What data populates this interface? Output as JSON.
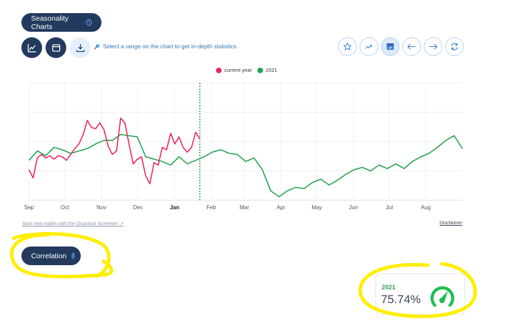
{
  "header": {
    "title": "Seasonality Charts",
    "info_icon": "info-icon",
    "hint_icon": "magnifier-icon",
    "hint_text": "Select a range on the chart to get in-depth statistics"
  },
  "view_buttons": [
    {
      "name": "line-chart-view",
      "icon": "line-chart-icon",
      "style": "dark"
    },
    {
      "name": "calendar-view",
      "icon": "calendar-icon",
      "style": "dark"
    },
    {
      "name": "download",
      "icon": "download-icon",
      "style": "light"
    }
  ],
  "toolbar": [
    {
      "name": "favorite",
      "icon": "star-icon"
    },
    {
      "name": "trend",
      "icon": "trending-up-icon"
    },
    {
      "name": "calendar",
      "icon": "calendar-check-icon",
      "active": true
    },
    {
      "name": "previous",
      "icon": "arrow-left-icon"
    },
    {
      "name": "next",
      "icon": "arrow-right-icon"
    },
    {
      "name": "refresh",
      "icon": "refresh-icon"
    }
  ],
  "legend": {
    "current": "current year",
    "previous": "2021"
  },
  "colors": {
    "current_year": "#f0245a",
    "year_2021": "#23a34e",
    "navy": "#233a5e",
    "link_blue": "#2f78b7",
    "highlight": "#ffee00"
  },
  "links": {
    "screener": "Spot new trades with the Quantum Screener!",
    "disclaimer": "Disclaimer"
  },
  "correlation": {
    "title": "Correlation",
    "year": "2021",
    "value": "75.74%",
    "icon": "gauge-icon"
  },
  "chart_data": {
    "type": "line",
    "title": "",
    "xlabel": "",
    "ylabel": "",
    "x_ticks": [
      "Sep",
      "Oct",
      "Nov",
      "Dec",
      "Jan",
      "Feb",
      "Mar",
      "Apr",
      "May",
      "Jun",
      "Jul",
      "Aug"
    ],
    "bold_tick": "Jan",
    "ylim": [
      0,
      100
    ],
    "grid": true,
    "legend_position": "top-center",
    "today_marker": {
      "position_week": 20.5,
      "style": "dotted",
      "color": "#1a8a2e"
    },
    "x_unit": "week index from start of Sep",
    "series": [
      {
        "name": "current year",
        "color": "#f0245a",
        "x": [
          0,
          0.5,
          1,
          1.5,
          2,
          2.5,
          3,
          3.5,
          4,
          4.5,
          5,
          5.5,
          6,
          6.5,
          7,
          7.5,
          8,
          8.5,
          9,
          9.5,
          10,
          10.5,
          11,
          11.5,
          12,
          12.5,
          13,
          13.5,
          14,
          14.5,
          15,
          15.5,
          16,
          16.5,
          17,
          17.5,
          18,
          18.5,
          19,
          19.5,
          20,
          20.5
        ],
        "values": [
          26,
          19,
          36,
          39,
          36,
          38,
          35,
          38,
          37,
          34,
          39,
          44,
          48,
          56,
          68,
          62,
          61,
          66,
          60,
          46,
          39,
          42,
          70,
          66,
          48,
          31,
          35,
          37,
          21,
          14,
          32,
          30,
          45,
          43,
          57,
          48,
          54,
          45,
          41,
          45,
          58,
          52
        ]
      },
      {
        "name": "2021",
        "color": "#23a34e",
        "x": [
          0,
          1,
          2,
          3,
          4,
          5,
          6,
          7,
          8,
          9,
          10,
          11,
          12,
          13,
          14,
          15,
          16,
          17,
          18,
          19,
          20,
          21,
          22,
          23,
          24,
          25,
          26,
          27,
          28,
          29,
          30,
          31,
          32,
          33,
          34,
          35,
          36,
          37,
          38,
          39,
          40,
          41,
          42,
          43,
          44,
          45,
          46,
          47,
          48,
          49,
          50,
          51,
          52
        ],
        "values": [
          34,
          42,
          38,
          45,
          43,
          40,
          42,
          44,
          48,
          51,
          51,
          56,
          55,
          54,
          37,
          35,
          33,
          30,
          37,
          31,
          34,
          37,
          41,
          43,
          40,
          39,
          33,
          36,
          26,
          8,
          3,
          8,
          11,
          10,
          15,
          18,
          13,
          17,
          22,
          26,
          28,
          25,
          30,
          27,
          31,
          27,
          33,
          37,
          40,
          45,
          51,
          55,
          44
        ]
      }
    ]
  }
}
